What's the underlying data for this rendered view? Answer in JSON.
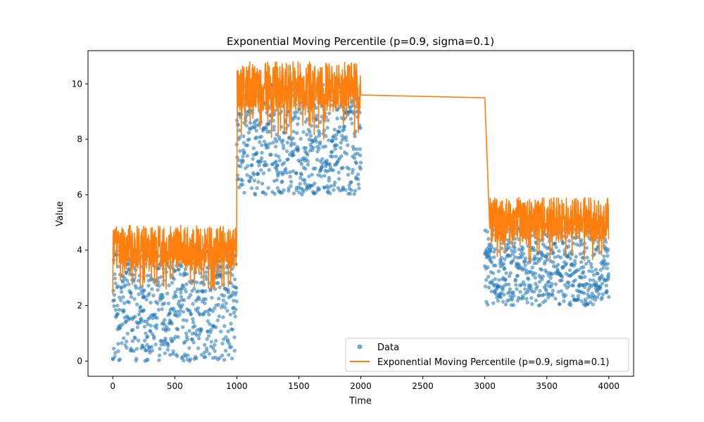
{
  "chart_data": {
    "type": "scatter",
    "title": "Exponential Moving Percentile (p=0.9, sigma=0.1)",
    "xlabel": "Time",
    "ylabel": "Value",
    "xlim": [
      -200,
      4200
    ],
    "ylim": [
      -0.55,
      11.2
    ],
    "x_ticks": [
      0,
      500,
      1000,
      1500,
      2000,
      2500,
      3000,
      3500,
      4000
    ],
    "y_ticks": [
      0,
      2,
      4,
      6,
      8,
      10
    ],
    "grid": false,
    "legend_position": "lower-right",
    "series": [
      {
        "name": "Data",
        "kind": "scatter",
        "color": "#1f77b4",
        "segments": [
          {
            "x_range": [
              0,
              1000
            ],
            "value_range": [
              0,
              4
            ]
          },
          {
            "x_range": [
              1000,
              2000
            ],
            "value_range": [
              6,
              10
            ]
          },
          {
            "x_range": [
              3000,
              4000
            ],
            "value_range": [
              2,
              5
            ]
          }
        ]
      },
      {
        "name": "Exponential Moving Percentile (p=0.9, sigma=0.1)",
        "kind": "line",
        "color": "#ff7f0e",
        "points": [
          [
            0,
            2.4
          ],
          [
            20,
            3.3
          ],
          [
            80,
            3.8
          ],
          [
            200,
            3.6
          ],
          [
            400,
            3.7
          ],
          [
            600,
            3.4
          ],
          [
            800,
            3.6
          ],
          [
            990,
            3.7
          ],
          [
            1000,
            4.6
          ],
          [
            1010,
            9.6
          ],
          [
            1200,
            9.7
          ],
          [
            1500,
            9.6
          ],
          [
            1800,
            9.7
          ],
          [
            1990,
            9.6
          ],
          [
            2000,
            9.6
          ],
          [
            3000,
            9.5
          ],
          [
            3040,
            4.8
          ],
          [
            3300,
            4.9
          ],
          [
            3600,
            4.8
          ],
          [
            3990,
            4.7
          ]
        ],
        "band": [
          {
            "x_range": [
              0,
              1000
            ],
            "low": 2.6,
            "high": 4.9
          },
          {
            "x_range": [
              1000,
              2000
            ],
            "low": 8.0,
            "high": 10.8
          },
          {
            "x_range": [
              3040,
              4000
            ],
            "low": 3.5,
            "high": 5.9
          }
        ]
      }
    ]
  }
}
